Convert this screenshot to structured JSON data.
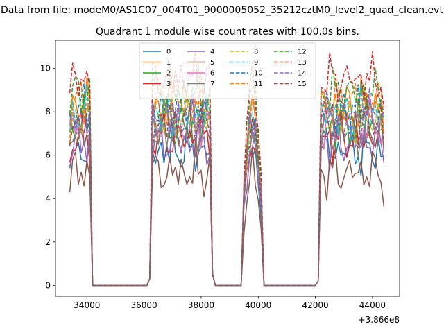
{
  "chart_data": {
    "type": "line",
    "suptitle": "Data from file: modeM0/AS1C07_004T01_9000005052_35212cztM0_level2_quad_clean.evt",
    "title": "Quadrant 1 module wise count rates with 100.0s bins.",
    "xlabel": "",
    "ylabel": "",
    "x_offset_label": "+3.866e8",
    "xlim": [
      32900,
      44950
    ],
    "ylim": [
      -0.5,
      11.3
    ],
    "xticks": [
      34000,
      36000,
      38000,
      40000,
      42000,
      44000
    ],
    "xtick_labels": [
      "34000",
      "36000",
      "38000",
      "40000",
      "42000",
      "44000"
    ],
    "yticks": [
      0,
      2,
      4,
      6,
      8,
      10
    ],
    "ytick_labels": [
      "0",
      "2",
      "4",
      "6",
      "8",
      "10"
    ],
    "grid": false,
    "legend_placement": "top-center",
    "legend_columns": 4,
    "segments": [
      {
        "start": 33400,
        "end": 34200
      },
      {
        "start": 36200,
        "end": 38400
      },
      {
        "start": 39500,
        "end": 40100
      },
      {
        "start": 42100,
        "end": 44400
      }
    ],
    "series": [
      {
        "name": "0",
        "color": "#1f77b4",
        "dash": "solid",
        "base": 6.2
      },
      {
        "name": "1",
        "color": "#ff7f0e",
        "dash": "solid",
        "base": 8.3
      },
      {
        "name": "2",
        "color": "#2ca02c",
        "dash": "solid",
        "base": 7.3
      },
      {
        "name": "3",
        "color": "#d62728",
        "dash": "solid",
        "base": 6.8
      },
      {
        "name": "4",
        "color": "#9467bd",
        "dash": "solid",
        "base": 6.6
      },
      {
        "name": "5",
        "color": "#8c564b",
        "dash": "solid",
        "base": 5.2
      },
      {
        "name": "6",
        "color": "#e377c2",
        "dash": "solid",
        "base": 7.4
      },
      {
        "name": "7",
        "color": "#7f7f7f",
        "dash": "solid",
        "base": 7.0
      },
      {
        "name": "8",
        "color": "#bcbd22",
        "dash": "dashed",
        "base": 7.7
      },
      {
        "name": "9",
        "color": "#17becf",
        "dash": "dashed",
        "base": 7.9
      },
      {
        "name": "10",
        "color": "#1f77b4",
        "dash": "dashed",
        "base": 8.1
      },
      {
        "name": "11",
        "color": "#ff7f0e",
        "dash": "dashed",
        "base": 8.5
      },
      {
        "name": "12",
        "color": "#2ca02c",
        "dash": "dashed",
        "base": 8.9
      },
      {
        "name": "13",
        "color": "#d62728",
        "dash": "dashed",
        "base": 9.5
      },
      {
        "name": "14",
        "color": "#9467bd",
        "dash": "dashed",
        "base": 7.8
      },
      {
        "name": "15",
        "color": "#8c564b",
        "dash": "dashed",
        "base": 7.5
      }
    ]
  }
}
